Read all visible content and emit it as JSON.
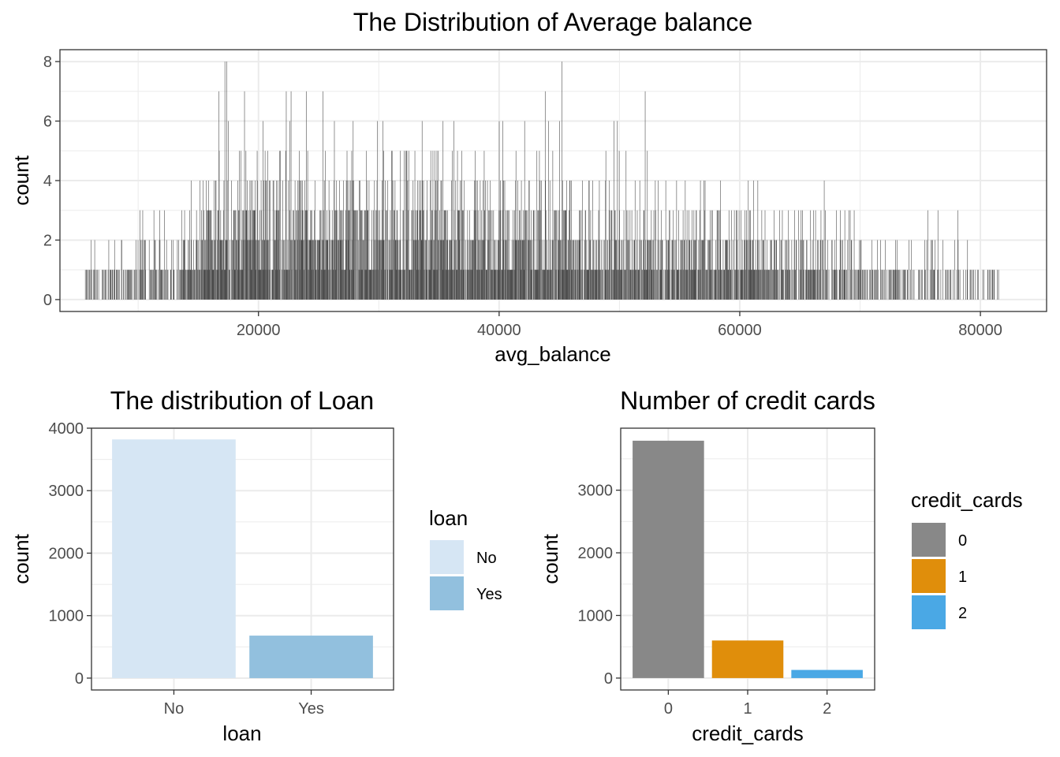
{
  "chart_data": [
    {
      "id": "hist",
      "type": "bar",
      "title": "The Distribution of Average balance",
      "xlabel": "avg_balance",
      "ylabel": "count",
      "xlim": [
        3500,
        85500
      ],
      "ylim": [
        -0.4,
        8.4
      ],
      "x_ticks": [
        20000,
        40000,
        60000,
        80000
      ],
      "y_ticks": [
        0,
        2,
        4,
        6,
        8
      ],
      "bar_color": "#4d4d4d",
      "peaks": [
        {
          "x": 17200,
          "count": 8
        },
        {
          "x": 17350,
          "count": 8
        },
        {
          "x": 22300,
          "count": 7
        },
        {
          "x": 40000,
          "count": 6
        },
        {
          "x": 40300,
          "count": 6
        },
        {
          "x": 45200,
          "count": 8
        },
        {
          "x": 60700,
          "count": 4
        }
      ],
      "grid": true,
      "legend": "none"
    },
    {
      "id": "loan",
      "type": "bar",
      "title": "The distribution of Loan",
      "xlabel": "loan",
      "ylabel": "count",
      "categories": [
        "No",
        "Yes"
      ],
      "values": [
        3820,
        680
      ],
      "colors": [
        "#d6e6f4",
        "#92c0de"
      ],
      "ylim": [
        -190,
        4000
      ],
      "y_ticks": [
        0,
        1000,
        2000,
        3000,
        4000
      ],
      "legend": {
        "title": "loan",
        "position": "right",
        "entries": [
          "No",
          "Yes"
        ]
      }
    },
    {
      "id": "cards",
      "type": "bar",
      "title": "Number of credit cards",
      "xlabel": "credit_cards",
      "ylabel": "count",
      "categories": [
        "0",
        "1",
        "2"
      ],
      "values": [
        3790,
        600,
        130
      ],
      "colors": [
        "#888888",
        "#e08e0b",
        "#4aa8e5"
      ],
      "ylim": [
        -190,
        3990
      ],
      "y_ticks": [
        0,
        1000,
        2000,
        3000
      ],
      "legend": {
        "title": "credit_cards",
        "position": "right",
        "entries": [
          "0",
          "1",
          "2"
        ]
      }
    }
  ]
}
